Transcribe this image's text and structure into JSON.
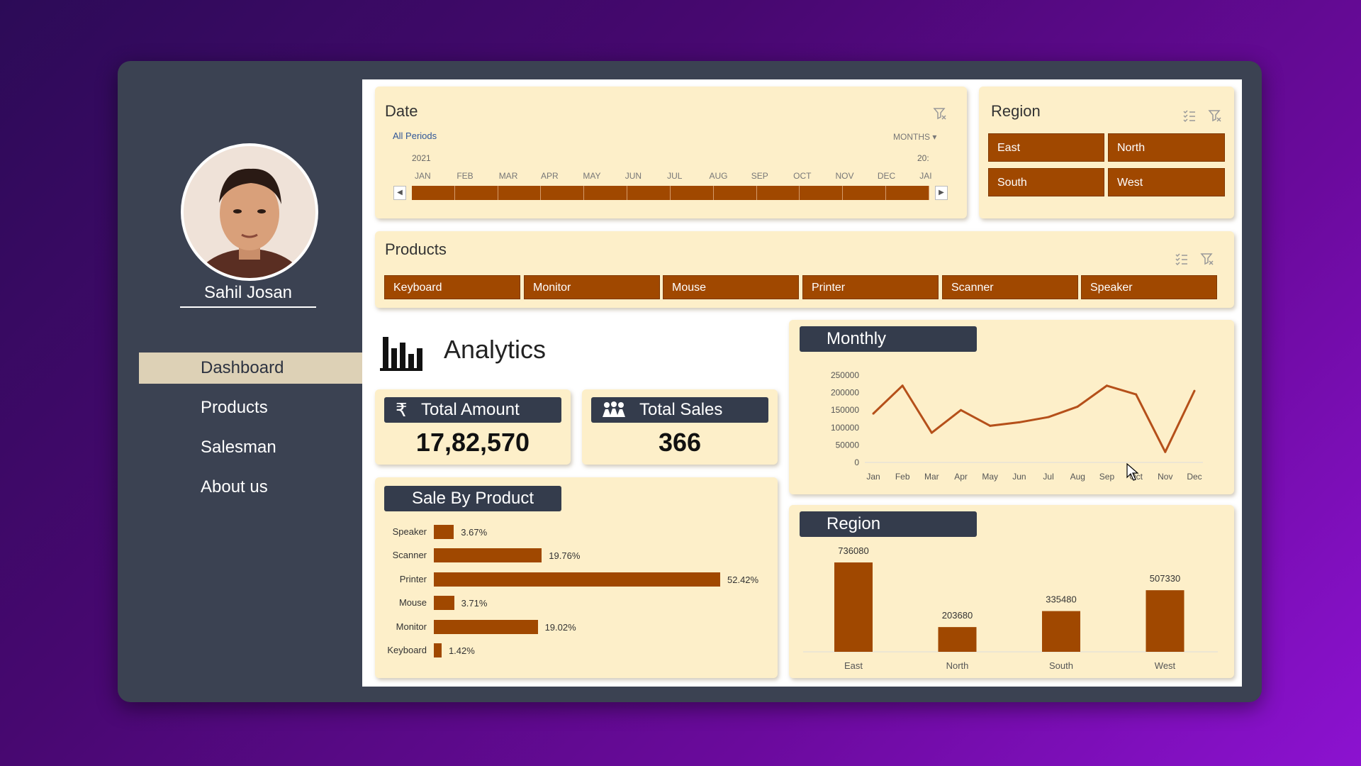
{
  "user": {
    "name": "Sahil Josan"
  },
  "nav": {
    "items": [
      {
        "label": "Dashboard",
        "active": true
      },
      {
        "label": "Products",
        "active": false
      },
      {
        "label": "Salesman",
        "active": false
      },
      {
        "label": "About us",
        "active": false
      }
    ]
  },
  "date_slicer": {
    "title": "Date",
    "period_label": "All Periods",
    "level": "MONTHS",
    "year_start": "2021",
    "year_next": "20:",
    "months": [
      "JAN",
      "FEB",
      "MAR",
      "APR",
      "MAY",
      "JUN",
      "JUL",
      "AUG",
      "SEP",
      "OCT",
      "NOV",
      "DEC",
      "JAI"
    ]
  },
  "region_slicer": {
    "title": "Region",
    "items": [
      "East",
      "North",
      "South",
      "West"
    ]
  },
  "products_slicer": {
    "title": "Products",
    "items": [
      "Keyboard",
      "Monitor",
      "Mouse",
      "Printer",
      "Scanner",
      "Speaker"
    ]
  },
  "analytics": {
    "title": "Analytics"
  },
  "kpis": {
    "total_amount": {
      "label": "Total Amount",
      "value": "17,82,570"
    },
    "total_sales": {
      "label": "Total Sales",
      "value": "366"
    }
  },
  "sale_by_product": {
    "title": "Sale By Product",
    "rows": [
      {
        "label": "Speaker",
        "pct": 3.67,
        "text": "3.67%"
      },
      {
        "label": "Scanner",
        "pct": 19.76,
        "text": "19.76%"
      },
      {
        "label": "Printer",
        "pct": 52.42,
        "text": "52.42%"
      },
      {
        "label": "Mouse",
        "pct": 3.71,
        "text": "3.71%"
      },
      {
        "label": "Monitor",
        "pct": 19.02,
        "text": "19.02%"
      },
      {
        "label": "Keyboard",
        "pct": 1.42,
        "text": "1.42%"
      }
    ]
  },
  "monthly": {
    "title": "Monthly"
  },
  "region_chart": {
    "title": "Region"
  },
  "colors": {
    "accent": "#a04800",
    "card": "#fdefc9",
    "header": "#343c4c",
    "line": "#b5501a"
  },
  "chart_data": [
    {
      "type": "line",
      "title": "Monthly",
      "categories": [
        "Jan",
        "Feb",
        "Mar",
        "Apr",
        "May",
        "Jun",
        "Jul",
        "Aug",
        "Sep",
        "Oct",
        "Nov",
        "Dec"
      ],
      "values": [
        140000,
        220000,
        85000,
        150000,
        105000,
        115000,
        130000,
        160000,
        220000,
        195000,
        30000,
        205000
      ],
      "yticks": [
        "250000",
        "200000",
        "150000",
        "100000",
        "50000",
        "0"
      ],
      "ylim": [
        0,
        250000
      ]
    },
    {
      "type": "bar",
      "title": "Region",
      "categories": [
        "East",
        "North",
        "South",
        "West"
      ],
      "values": [
        736080,
        203680,
        335480,
        507330
      ],
      "labels": [
        "736080",
        "203680",
        "335480",
        "507330"
      ]
    },
    {
      "type": "bar",
      "title": "Sale By Product",
      "categories": [
        "Speaker",
        "Scanner",
        "Printer",
        "Mouse",
        "Monitor",
        "Keyboard"
      ],
      "values": [
        3.67,
        19.76,
        52.42,
        3.71,
        19.02,
        1.42
      ]
    }
  ]
}
